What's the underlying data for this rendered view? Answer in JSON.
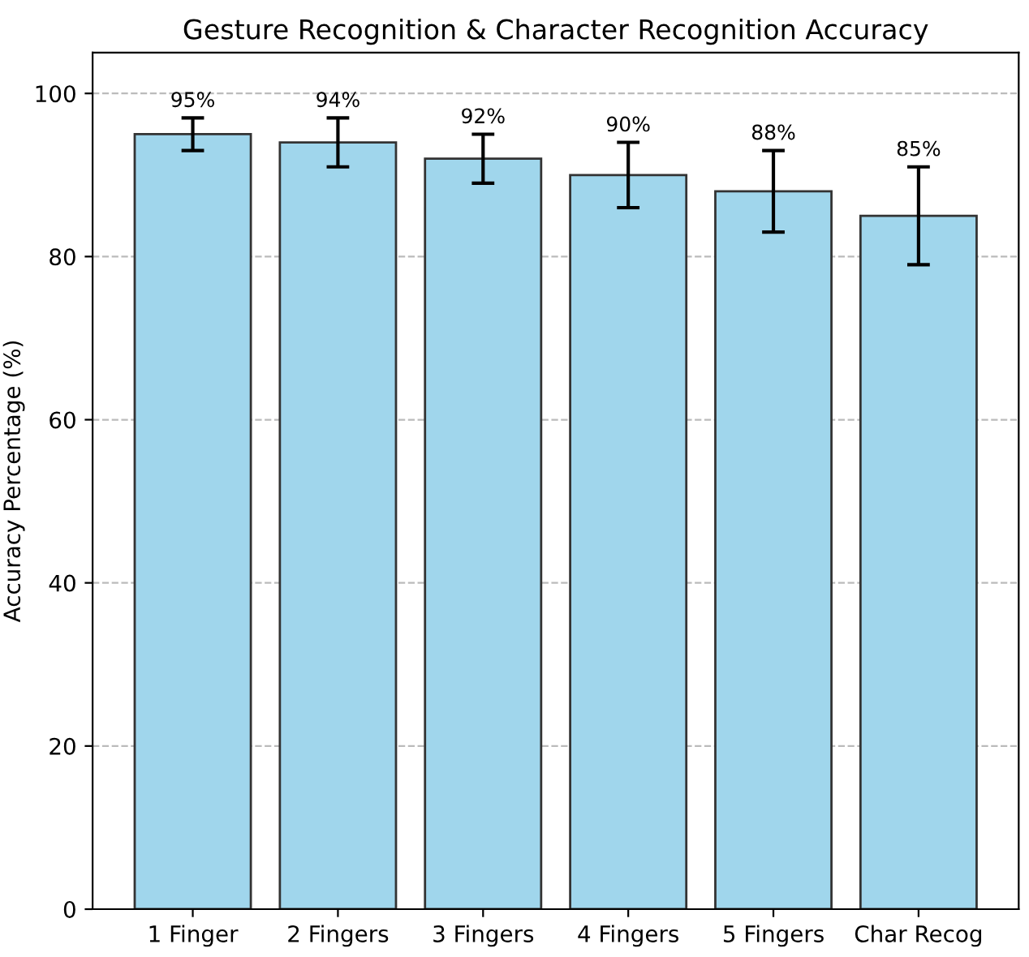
{
  "chart_data": {
    "type": "bar",
    "title": "Gesture Recognition & Character Recognition Accuracy",
    "ylabel": "Accuracy Percentage (%)",
    "categories": [
      "1 Finger",
      "2 Fingers",
      "3 Fingers",
      "4 Fingers",
      "5 Fingers",
      "Char Recog"
    ],
    "values": [
      95,
      94,
      92,
      90,
      88,
      85
    ],
    "errors": [
      2,
      3,
      3,
      4,
      5,
      6
    ],
    "value_labels": [
      "95%",
      "94%",
      "92%",
      "90%",
      "88%",
      "85%"
    ],
    "color": "#a0d6ec",
    "ylim": [
      0,
      105
    ],
    "yticks": [
      0,
      20,
      40,
      60,
      80,
      100
    ],
    "grid": "y"
  }
}
